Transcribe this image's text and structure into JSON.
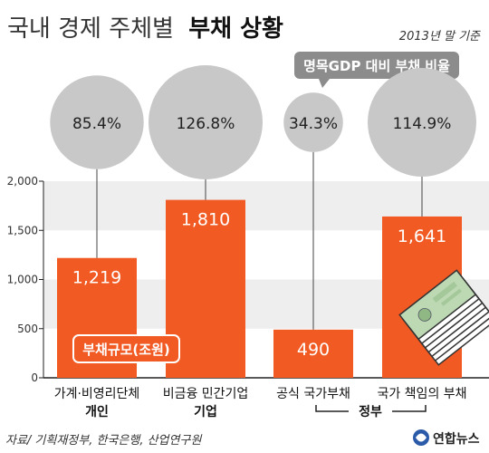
{
  "title_light": "국내 경제 주체별",
  "title_bold": "부채 상황",
  "basis_date": "2013년 말 기준",
  "ratio_label": "명목GDP 대비 부채 비율",
  "legend_label": "부채규모(조원)",
  "group_private": "",
  "group_gov": "정부",
  "source": "자료/ 기획재정부, 한국은행, 산업연구원",
  "logo_text": "연합뉴스",
  "colors": {
    "bar": "#f15a22",
    "bubble": "#c8c8c8",
    "band": "#eeeeee",
    "title_bold": "#111111",
    "title_light": "#333333"
  },
  "chart_data": {
    "type": "bar",
    "categories": [
      {
        "line1": "가계·비영리단체",
        "line2": "개인"
      },
      {
        "line1": "비금융 민간기업",
        "line2": "기업"
      },
      {
        "line1": "공식 국가부채",
        "line2": ""
      },
      {
        "line1": "국가 책임의 부채",
        "line2": ""
      }
    ],
    "values": [
      1219,
      1810,
      490,
      1641
    ],
    "value_labels": [
      "1,219",
      "1,810",
      "490",
      "1,641"
    ],
    "ratios": [
      85.4,
      126.8,
      34.3,
      114.9
    ],
    "ratio_labels": [
      "85.4%",
      "126.8%",
      "34.3%",
      "114.9%"
    ],
    "ylim": [
      0,
      2000
    ],
    "yticks": [
      0,
      500,
      1000,
      1500,
      2000
    ],
    "ytick_labels": [
      "0",
      "500",
      "1,000",
      "1,500",
      "2,000"
    ],
    "grid": "alternating-bands"
  }
}
